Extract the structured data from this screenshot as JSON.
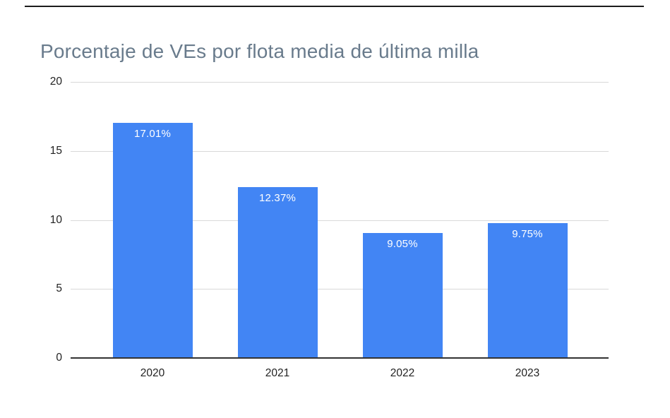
{
  "page": {
    "background": "#ffffff",
    "top_rule_color": "#1c1c1c"
  },
  "chart_data": {
    "type": "bar",
    "title": "Porcentaje de VEs por flota media de última milla",
    "title_color": "#697b8c",
    "categories": [
      "2020",
      "2021",
      "2022",
      "2023"
    ],
    "values": [
      17.01,
      12.37,
      9.05,
      9.75
    ],
    "value_labels": [
      "17.01%",
      "12.37%",
      "9.05%",
      "9.75%"
    ],
    "xlabel": "",
    "ylabel": "",
    "ylim": [
      0,
      20
    ],
    "yticks": [
      0,
      5,
      10,
      15,
      20
    ],
    "grid": true,
    "legend": "none",
    "colors": {
      "bar": "#4285f4",
      "bar_label": "#ffffff",
      "axis_text": "#222222",
      "gridline": "#d9d9d9",
      "baseline": "#333333"
    }
  }
}
